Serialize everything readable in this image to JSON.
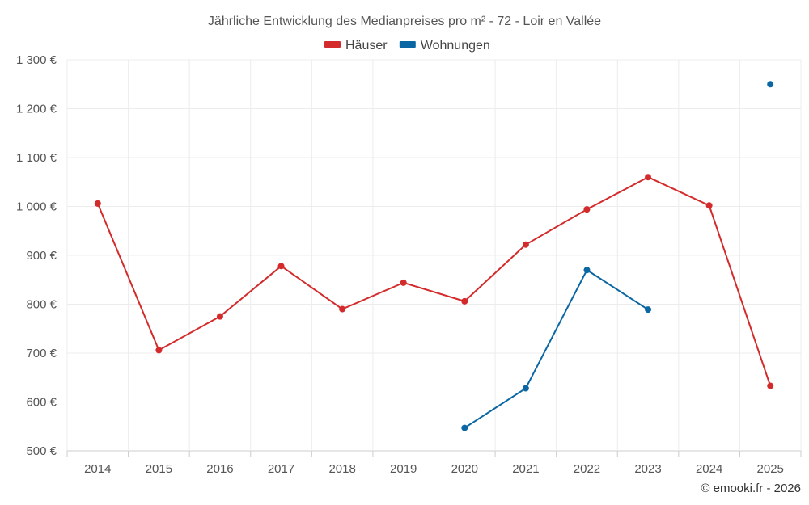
{
  "chart_data": {
    "type": "line",
    "title": "Jährliche Entwicklung des Medianpreises pro m² - 72 - Loir en Vallée",
    "categories": [
      "2014",
      "2015",
      "2016",
      "2017",
      "2018",
      "2019",
      "2020",
      "2021",
      "2022",
      "2023",
      "2024",
      "2025"
    ],
    "series": [
      {
        "name": "Häuser",
        "color": "#d32b2b",
        "values": [
          1006,
          706,
          775,
          878,
          790,
          844,
          806,
          922,
          994,
          1060,
          1002,
          633
        ]
      },
      {
        "name": "Wohnungen",
        "color": "#0a67a3",
        "values": [
          null,
          null,
          null,
          null,
          null,
          null,
          547,
          628,
          870,
          789,
          null,
          1250
        ]
      }
    ],
    "y_ticks": [
      "500 €",
      "600 €",
      "700 €",
      "800 €",
      "900 €",
      "1 000 €",
      "1 100 €",
      "1 200 €",
      "1 300 €"
    ],
    "ylim": [
      500,
      1300
    ],
    "xlabel": "",
    "ylabel": "",
    "legend_position": "top-center",
    "grid": true
  },
  "credit": "© emooki.fr - 2026"
}
